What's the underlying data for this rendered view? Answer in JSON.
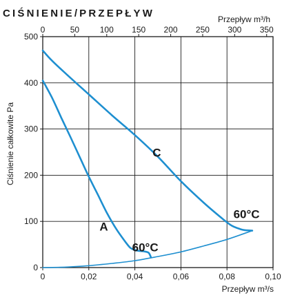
{
  "chart_data": {
    "type": "line",
    "title": "CIŚNIENIE/PRZEPŁYW",
    "ylabel": "Ciśnienie całkowite Pa",
    "xlabel": "Przepływ m³/s",
    "x2label": "Przepływ m³/h",
    "xlim": [
      0,
      0.1
    ],
    "ylim": [
      0,
      500
    ],
    "x2lim": [
      0,
      360
    ],
    "x_ticks": [
      "0",
      "0,02",
      "0,04",
      "0,06",
      "0,08",
      "0,10"
    ],
    "x_tick_values": [
      0,
      0.02,
      0.04,
      0.06,
      0.08,
      0.1
    ],
    "x2_ticks": [
      "0",
      "50",
      "100",
      "150",
      "200",
      "250",
      "300",
      "350"
    ],
    "x2_tick_values": [
      0,
      50,
      100,
      150,
      200,
      250,
      300,
      350
    ],
    "y_ticks": [
      "0",
      "100",
      "200",
      "300",
      "400",
      "500"
    ],
    "y_tick_values": [
      0,
      100,
      200,
      300,
      400,
      500
    ],
    "grid": true,
    "line_color": "#1e8fd0",
    "series": [
      {
        "name": "A",
        "x": [
          0,
          0.004,
          0.008,
          0.012,
          0.016,
          0.02,
          0.024,
          0.028,
          0.032,
          0.036,
          0.038,
          0.04,
          0.042,
          0.044,
          0.046,
          0.047
        ],
        "y": [
          405,
          368,
          325,
          283,
          240,
          197,
          157,
          117,
          83,
          55,
          43,
          38,
          36,
          35,
          32,
          22
        ],
        "label_x": 0.0265,
        "label_y": 80
      },
      {
        "name": "C",
        "x": [
          0,
          0.004,
          0.01,
          0.02,
          0.03,
          0.04,
          0.05,
          0.06,
          0.07,
          0.078,
          0.082,
          0.086,
          0.088,
          0.091
        ],
        "y": [
          470,
          448,
          420,
          375,
          330,
          287,
          240,
          187,
          140,
          106,
          91,
          83,
          81,
          80
        ],
        "label_x": 0.0495,
        "label_y": 240
      },
      {
        "name": "",
        "x": [
          0,
          0.01,
          0.02,
          0.03,
          0.04,
          0.05,
          0.06,
          0.07,
          0.08,
          0.091
        ],
        "y": [
          0,
          1,
          4,
          9,
          15,
          24,
          34,
          47,
          61,
          80
        ]
      }
    ],
    "annotations": [
      {
        "text": "60°C",
        "x": 0.0445,
        "y": 35
      },
      {
        "text": "60°C",
        "x": 0.0885,
        "y": 107
      }
    ]
  }
}
